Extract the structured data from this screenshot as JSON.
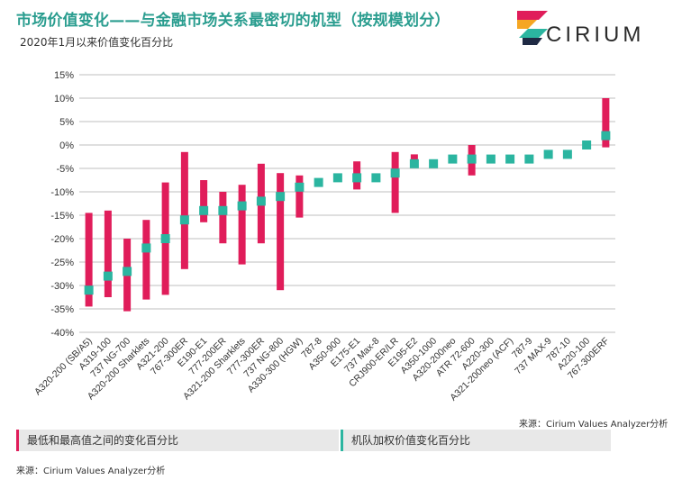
{
  "header": {
    "title": "市场价值变化——与金融市场关系最密切的机型（按规模划分）",
    "subtitle": "2020年1月以来价值变化百分比"
  },
  "logo": {
    "brand": "CIRIUM",
    "colors": [
      "#e01d5a",
      "#f5a623",
      "#2bb5a0",
      "#1f2a44"
    ]
  },
  "colors": {
    "range_bar": "#e01d5a",
    "fleet_marker": "#2bb5a0",
    "grid": "#bfbfbf",
    "axis_text": "#333333"
  },
  "legend": {
    "range_label": "最低和最高值之间的变化百分比",
    "fleet_label": "机队加权价值变化百分比"
  },
  "source": {
    "top": "来源：Cirium Values Analyzer分析",
    "bottom": "来源：Cirium Values Analyzer分析"
  },
  "chart_data": {
    "type": "bar",
    "y_unit": "%",
    "ylim": [
      -40,
      15
    ],
    "yticks": [
      15,
      10,
      5,
      0,
      -5,
      -10,
      -15,
      -20,
      -25,
      -30,
      -35,
      -40
    ],
    "ytick_labels": [
      "15%",
      "10%",
      "5%",
      "0%",
      "-5%",
      "-10%",
      "-15%",
      "-20%",
      "-25%",
      "-30%",
      "-35%",
      "-40%"
    ],
    "grid": true,
    "legend_position": "bottom",
    "categories": [
      "A320-200 (SB/A5)",
      "A319-100",
      "737 NG-700",
      "A320-200 Sharklets",
      "A321-200",
      "767-300ER",
      "E190-E1",
      "777-200ER",
      "A321-200 Sharklets",
      "777-300ER",
      "737 NG-800",
      "A330-300 (HGW)",
      "787-8",
      "A350-900",
      "E175-E1",
      "737 Max-8",
      "CRJ900-ER/LR",
      "E195-E2",
      "A350-1000",
      "A320-200neo",
      "ATR 72-600",
      "A220-300",
      "A321-200neo (ACF)",
      "787-9",
      "737 MAX-9",
      "787-10",
      "A220-100",
      "767-300ERF"
    ],
    "series": [
      {
        "name": "最低和最高值之间的变化百分比",
        "kind": "range",
        "low": [
          -34.5,
          -32.5,
          -35.5,
          -33,
          -32,
          -26.5,
          -16.5,
          -21,
          -25.5,
          -21,
          -31,
          -15.5,
          null,
          null,
          -9.5,
          null,
          -14.5,
          -3.5,
          null,
          null,
          -6.5,
          null,
          null,
          null,
          null,
          null,
          null,
          -0.5
        ],
        "high": [
          -14.5,
          -14,
          -20,
          -16,
          -8,
          -1.5,
          -7.5,
          -10,
          -8.5,
          -4,
          -6,
          -6.5,
          null,
          null,
          -3.5,
          null,
          -1.5,
          -2,
          null,
          null,
          0,
          null,
          null,
          null,
          null,
          null,
          null,
          10
        ]
      },
      {
        "name": "机队加权价值变化百分比",
        "kind": "point",
        "values": [
          -31,
          -28,
          -27,
          -22,
          -20,
          -16,
          -14,
          -14,
          -13,
          -12,
          -11,
          -9,
          -8,
          -7,
          -7,
          -7,
          -6,
          -4,
          -4,
          -3,
          -3,
          -3,
          -3,
          -3,
          -2,
          -2,
          0,
          2
        ]
      }
    ]
  }
}
